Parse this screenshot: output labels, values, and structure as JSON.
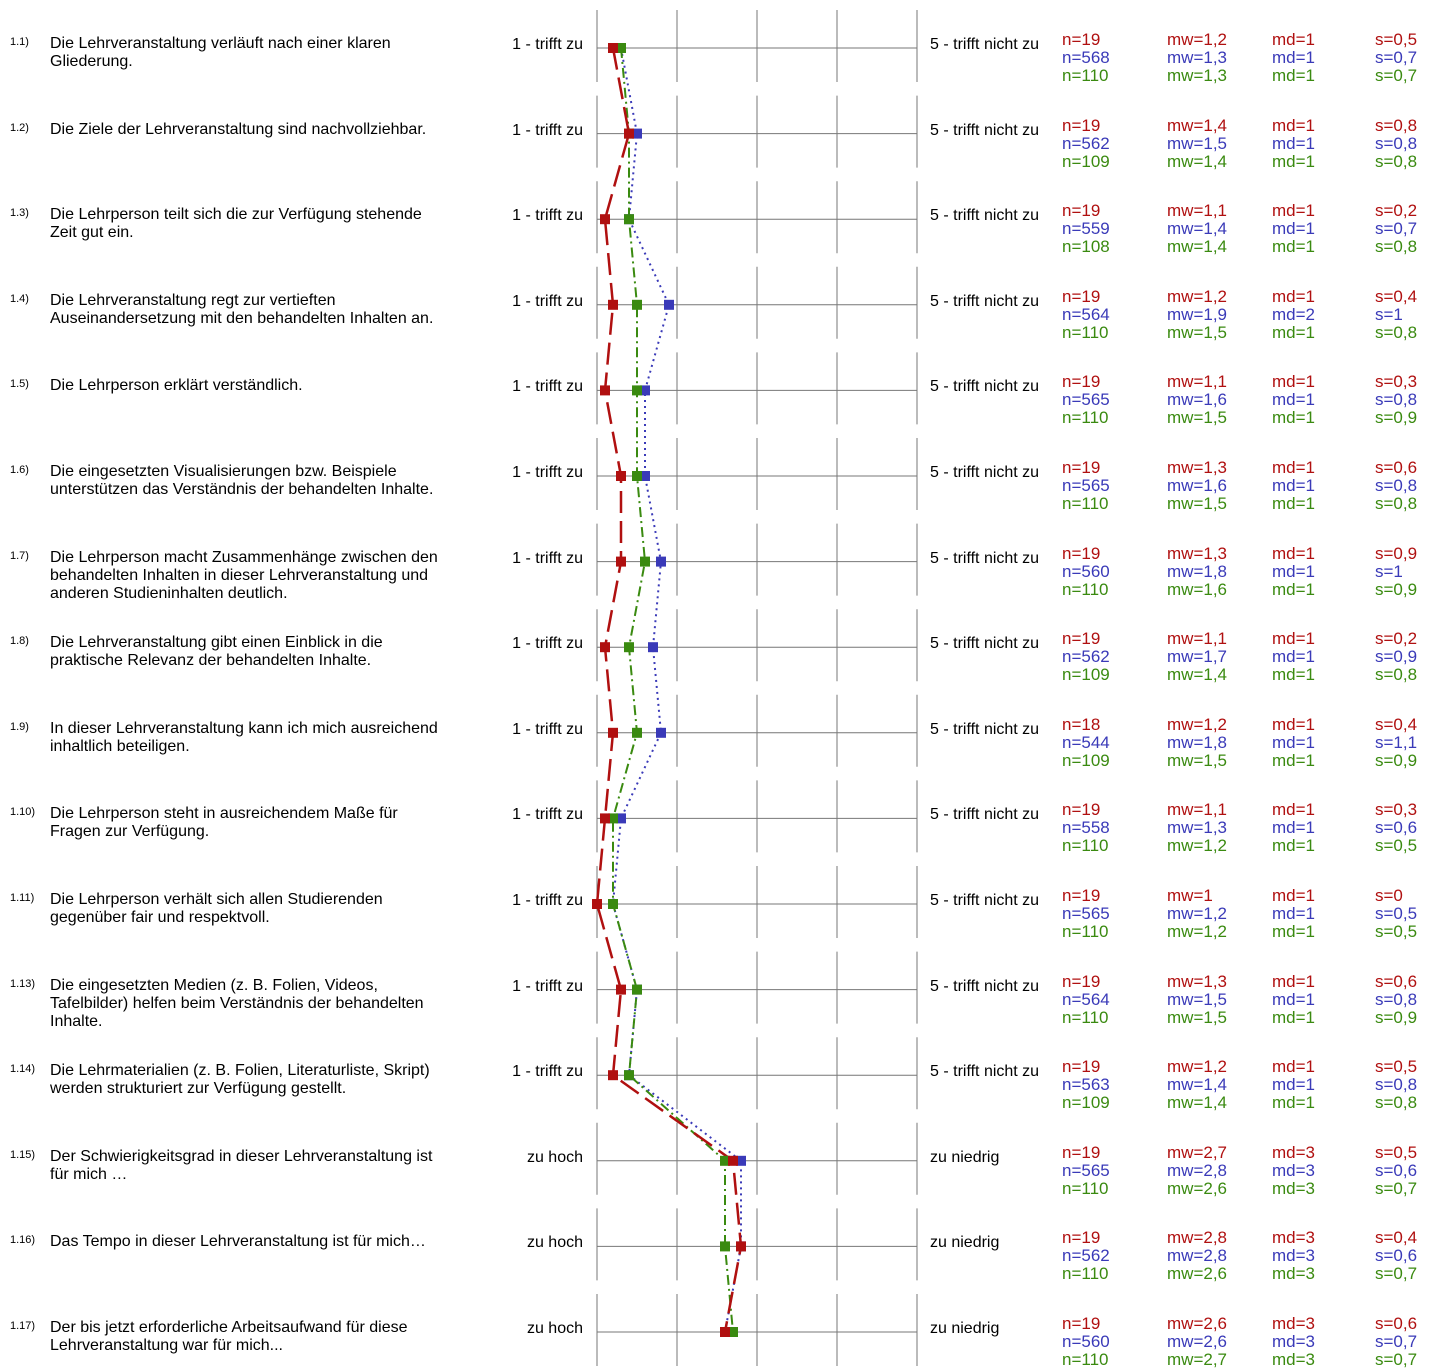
{
  "colors": {
    "course": "#b01010",
    "department": "#3a3ab8",
    "faculty": "#3a8a10"
  },
  "chart_data": {
    "type": "line",
    "orientation": "profile-vertical",
    "scale": [
      1,
      5
    ],
    "series": [],
    "items": [
      {
        "num": "1.1)",
        "text": "Die Lehrveranstaltung verläuft nach einer klaren Gliederung.",
        "left": "1 - trifft zu",
        "right": "5 - trifft nicht zu",
        "stats": [
          {
            "n": "n=19",
            "mw": "mw=1,2",
            "md": "md=1",
            "s": "s=0,5",
            "value": 1.2
          },
          {
            "n": "n=568",
            "mw": "mw=1,3",
            "md": "md=1",
            "s": "s=0,7",
            "value": 1.3
          },
          {
            "n": "n=110",
            "mw": "mw=1,3",
            "md": "md=1",
            "s": "s=0,7",
            "value": 1.3
          }
        ]
      },
      {
        "num": "1.2)",
        "text": "Die Ziele der Lehrveranstaltung sind nachvollziehbar.",
        "left": "1 - trifft zu",
        "right": "5 - trifft nicht zu",
        "stats": [
          {
            "n": "n=19",
            "mw": "mw=1,4",
            "md": "md=1",
            "s": "s=0,8",
            "value": 1.4
          },
          {
            "n": "n=562",
            "mw": "mw=1,5",
            "md": "md=1",
            "s": "s=0,8",
            "value": 1.5
          },
          {
            "n": "n=109",
            "mw": "mw=1,4",
            "md": "md=1",
            "s": "s=0,8",
            "value": 1.4
          }
        ]
      },
      {
        "num": "1.3)",
        "text": "Die Lehrperson teilt sich die zur Verfügung stehende Zeit gut ein.",
        "left": "1 - trifft zu",
        "right": "5 - trifft nicht zu",
        "stats": [
          {
            "n": "n=19",
            "mw": "mw=1,1",
            "md": "md=1",
            "s": "s=0,2",
            "value": 1.1
          },
          {
            "n": "n=559",
            "mw": "mw=1,4",
            "md": "md=1",
            "s": "s=0,7",
            "value": 1.4
          },
          {
            "n": "n=108",
            "mw": "mw=1,4",
            "md": "md=1",
            "s": "s=0,8",
            "value": 1.4
          }
        ]
      },
      {
        "num": "1.4)",
        "text": "Die Lehrveranstaltung regt zur vertieften Auseinandersetzung mit den behandelten Inhalten an.",
        "left": "1 - trifft zu",
        "right": "5 - trifft nicht zu",
        "stats": [
          {
            "n": "n=19",
            "mw": "mw=1,2",
            "md": "md=1",
            "s": "s=0,4",
            "value": 1.2
          },
          {
            "n": "n=564",
            "mw": "mw=1,9",
            "md": "md=2",
            "s": "s=1",
            "value": 1.9
          },
          {
            "n": "n=110",
            "mw": "mw=1,5",
            "md": "md=1",
            "s": "s=0,8",
            "value": 1.5
          }
        ]
      },
      {
        "num": "1.5)",
        "text": "Die Lehrperson erklärt verständlich.",
        "left": "1 - trifft zu",
        "right": "5 - trifft nicht zu",
        "stats": [
          {
            "n": "n=19",
            "mw": "mw=1,1",
            "md": "md=1",
            "s": "s=0,3",
            "value": 1.1
          },
          {
            "n": "n=565",
            "mw": "mw=1,6",
            "md": "md=1",
            "s": "s=0,8",
            "value": 1.6
          },
          {
            "n": "n=110",
            "mw": "mw=1,5",
            "md": "md=1",
            "s": "s=0,9",
            "value": 1.5
          }
        ]
      },
      {
        "num": "1.6)",
        "text": "Die eingesetzten Visualisierungen bzw. Beispiele unterstützen das Verständnis der behandelten Inhalte.",
        "left": "1 - trifft zu",
        "right": "5 - trifft nicht zu",
        "stats": [
          {
            "n": "n=19",
            "mw": "mw=1,3",
            "md": "md=1",
            "s": "s=0,6",
            "value": 1.3
          },
          {
            "n": "n=565",
            "mw": "mw=1,6",
            "md": "md=1",
            "s": "s=0,8",
            "value": 1.6
          },
          {
            "n": "n=110",
            "mw": "mw=1,5",
            "md": "md=1",
            "s": "s=0,8",
            "value": 1.5
          }
        ]
      },
      {
        "num": "1.7)",
        "text": "Die Lehrperson macht Zusammenhänge zwischen den behandelten Inhalten in dieser Lehrveranstaltung und anderen Studieninhalten deutlich.",
        "left": "1 - trifft zu",
        "right": "5 - trifft nicht zu",
        "stats": [
          {
            "n": "n=19",
            "mw": "mw=1,3",
            "md": "md=1",
            "s": "s=0,9",
            "value": 1.3
          },
          {
            "n": "n=560",
            "mw": "mw=1,8",
            "md": "md=1",
            "s": "s=1",
            "value": 1.8
          },
          {
            "n": "n=110",
            "mw": "mw=1,6",
            "md": "md=1",
            "s": "s=0,9",
            "value": 1.6
          }
        ]
      },
      {
        "num": "1.8)",
        "text": "Die Lehrveranstaltung gibt einen Einblick in die praktische Relevanz der behandelten Inhalte.",
        "left": "1 - trifft zu",
        "right": "5 - trifft nicht zu",
        "stats": [
          {
            "n": "n=19",
            "mw": "mw=1,1",
            "md": "md=1",
            "s": "s=0,2",
            "value": 1.1
          },
          {
            "n": "n=562",
            "mw": "mw=1,7",
            "md": "md=1",
            "s": "s=0,9",
            "value": 1.7
          },
          {
            "n": "n=109",
            "mw": "mw=1,4",
            "md": "md=1",
            "s": "s=0,8",
            "value": 1.4
          }
        ]
      },
      {
        "num": "1.9)",
        "text": "In dieser Lehrveranstaltung kann ich mich ausreichend inhaltlich beteiligen.",
        "left": "1 - trifft zu",
        "right": "5 - trifft nicht zu",
        "stats": [
          {
            "n": "n=18",
            "mw": "mw=1,2",
            "md": "md=1",
            "s": "s=0,4",
            "value": 1.2
          },
          {
            "n": "n=544",
            "mw": "mw=1,8",
            "md": "md=1",
            "s": "s=1,1",
            "value": 1.8
          },
          {
            "n": "n=109",
            "mw": "mw=1,5",
            "md": "md=1",
            "s": "s=0,9",
            "value": 1.5
          }
        ]
      },
      {
        "num": "1.10)",
        "text": "Die Lehrperson steht in ausreichendem Maße für Fragen zur Verfügung.",
        "left": "1 - trifft zu",
        "right": "5 - trifft nicht zu",
        "stats": [
          {
            "n": "n=19",
            "mw": "mw=1,1",
            "md": "md=1",
            "s": "s=0,3",
            "value": 1.1
          },
          {
            "n": "n=558",
            "mw": "mw=1,3",
            "md": "md=1",
            "s": "s=0,6",
            "value": 1.3
          },
          {
            "n": "n=110",
            "mw": "mw=1,2",
            "md": "md=1",
            "s": "s=0,5",
            "value": 1.2
          }
        ]
      },
      {
        "num": "1.11)",
        "text": "Die Lehrperson verhält sich allen Studierenden gegenüber fair und respektvoll.",
        "left": "1 - trifft zu",
        "right": "5 - trifft nicht zu",
        "stats": [
          {
            "n": "n=19",
            "mw": "mw=1",
            "md": "md=1",
            "s": "s=0",
            "value": 1.0
          },
          {
            "n": "n=565",
            "mw": "mw=1,2",
            "md": "md=1",
            "s": "s=0,5",
            "value": 1.2
          },
          {
            "n": "n=110",
            "mw": "mw=1,2",
            "md": "md=1",
            "s": "s=0,5",
            "value": 1.2
          }
        ]
      },
      {
        "num": "1.13)",
        "text": "Die eingesetzten Medien (z. B. Folien, Videos, Tafelbilder) helfen beim Verständnis der behandelten Inhalte.",
        "left": "1 - trifft zu",
        "right": "5 - trifft nicht zu",
        "stats": [
          {
            "n": "n=19",
            "mw": "mw=1,3",
            "md": "md=1",
            "s": "s=0,6",
            "value": 1.3
          },
          {
            "n": "n=564",
            "mw": "mw=1,5",
            "md": "md=1",
            "s": "s=0,8",
            "value": 1.5
          },
          {
            "n": "n=110",
            "mw": "mw=1,5",
            "md": "md=1",
            "s": "s=0,9",
            "value": 1.5
          }
        ]
      },
      {
        "num": "1.14)",
        "text": "Die Lehrmaterialien (z. B. Folien, Literaturliste, Skript) werden strukturiert zur Verfügung gestellt.",
        "left": "1 - trifft zu",
        "right": "5 - trifft nicht zu",
        "stats": [
          {
            "n": "n=19",
            "mw": "mw=1,2",
            "md": "md=1",
            "s": "s=0,5",
            "value": 1.2
          },
          {
            "n": "n=563",
            "mw": "mw=1,4",
            "md": "md=1",
            "s": "s=0,8",
            "value": 1.4
          },
          {
            "n": "n=109",
            "mw": "mw=1,4",
            "md": "md=1",
            "s": "s=0,8",
            "value": 1.4
          }
        ]
      },
      {
        "num": "1.15)",
        "text": "Der Schwierigkeitsgrad in dieser Lehrveranstaltung ist für mich …",
        "left": "zu hoch",
        "right": "zu niedrig",
        "stats": [
          {
            "n": "n=19",
            "mw": "mw=2,7",
            "md": "md=3",
            "s": "s=0,5",
            "value": 2.7
          },
          {
            "n": "n=565",
            "mw": "mw=2,8",
            "md": "md=3",
            "s": "s=0,6",
            "value": 2.8
          },
          {
            "n": "n=110",
            "mw": "mw=2,6",
            "md": "md=3",
            "s": "s=0,7",
            "value": 2.6
          }
        ]
      },
      {
        "num": "1.16)",
        "text": "Das Tempo in dieser Lehrveranstaltung ist für mich…",
        "left": "zu hoch",
        "right": "zu niedrig",
        "stats": [
          {
            "n": "n=19",
            "mw": "mw=2,8",
            "md": "md=3",
            "s": "s=0,4",
            "value": 2.8
          },
          {
            "n": "n=562",
            "mw": "mw=2,8",
            "md": "md=3",
            "s": "s=0,6",
            "value": 2.8
          },
          {
            "n": "n=110",
            "mw": "mw=2,6",
            "md": "md=3",
            "s": "s=0,7",
            "value": 2.6
          }
        ]
      },
      {
        "num": "1.17)",
        "text": "Der bis jetzt erforderliche Arbeitsaufwand für diese Lehrveranstaltung war für mich...",
        "left": "zu hoch",
        "right": "zu niedrig",
        "stats": [
          {
            "n": "n=19",
            "mw": "mw=2,6",
            "md": "md=3",
            "s": "s=0,6",
            "value": 2.6
          },
          {
            "n": "n=560",
            "mw": "mw=2,6",
            "md": "md=3",
            "s": "s=0,7",
            "value": 2.6
          },
          {
            "n": "n=110",
            "mw": "mw=2,7",
            "md": "md=3",
            "s": "s=0,7",
            "value": 2.7
          }
        ]
      }
    ]
  }
}
